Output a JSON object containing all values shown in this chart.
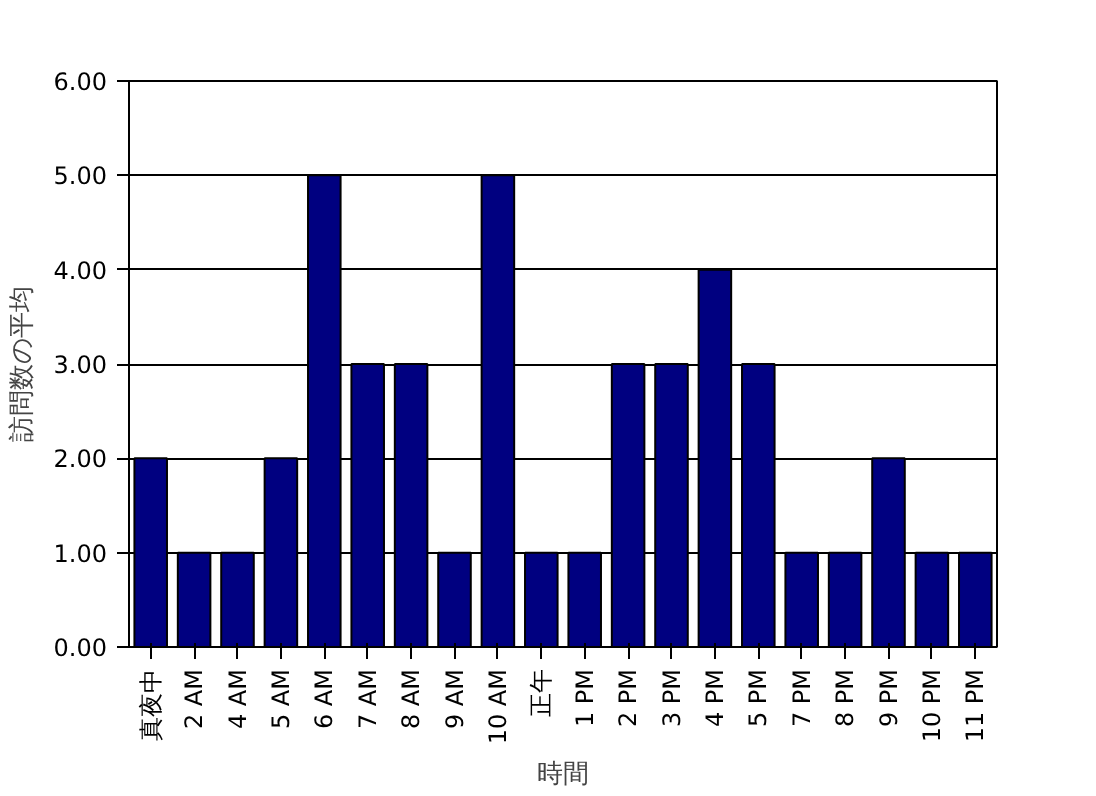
{
  "chart_data": {
    "type": "bar",
    "xlabel": "時間",
    "ylabel": "訪問数の平均",
    "categories": [
      "真夜中",
      "2 AM",
      "4 AM",
      "5 AM",
      "6 AM",
      "7 AM",
      "8 AM",
      "9 AM",
      "10 AM",
      "正午",
      "1 PM",
      "2 PM",
      "3 PM",
      "4 PM",
      "5 PM",
      "7 PM",
      "8 PM",
      "9 PM",
      "10 PM",
      "11 PM"
    ],
    "values": [
      2,
      1,
      1,
      2,
      5,
      3,
      3,
      1,
      5,
      1,
      1,
      3,
      3,
      4,
      3,
      1,
      1,
      2,
      1,
      1
    ],
    "color": "#000080",
    "ylim": [
      0,
      6
    ],
    "yticks": [
      {
        "value": 0,
        "label": "0.00"
      },
      {
        "value": 1,
        "label": "1.00"
      },
      {
        "value": 2,
        "label": "2.00"
      },
      {
        "value": 3,
        "label": "3.00"
      },
      {
        "value": 4,
        "label": "4.00"
      },
      {
        "value": 5,
        "label": "5.00"
      },
      {
        "value": 6,
        "label": "6.00"
      }
    ],
    "grid": "y"
  }
}
